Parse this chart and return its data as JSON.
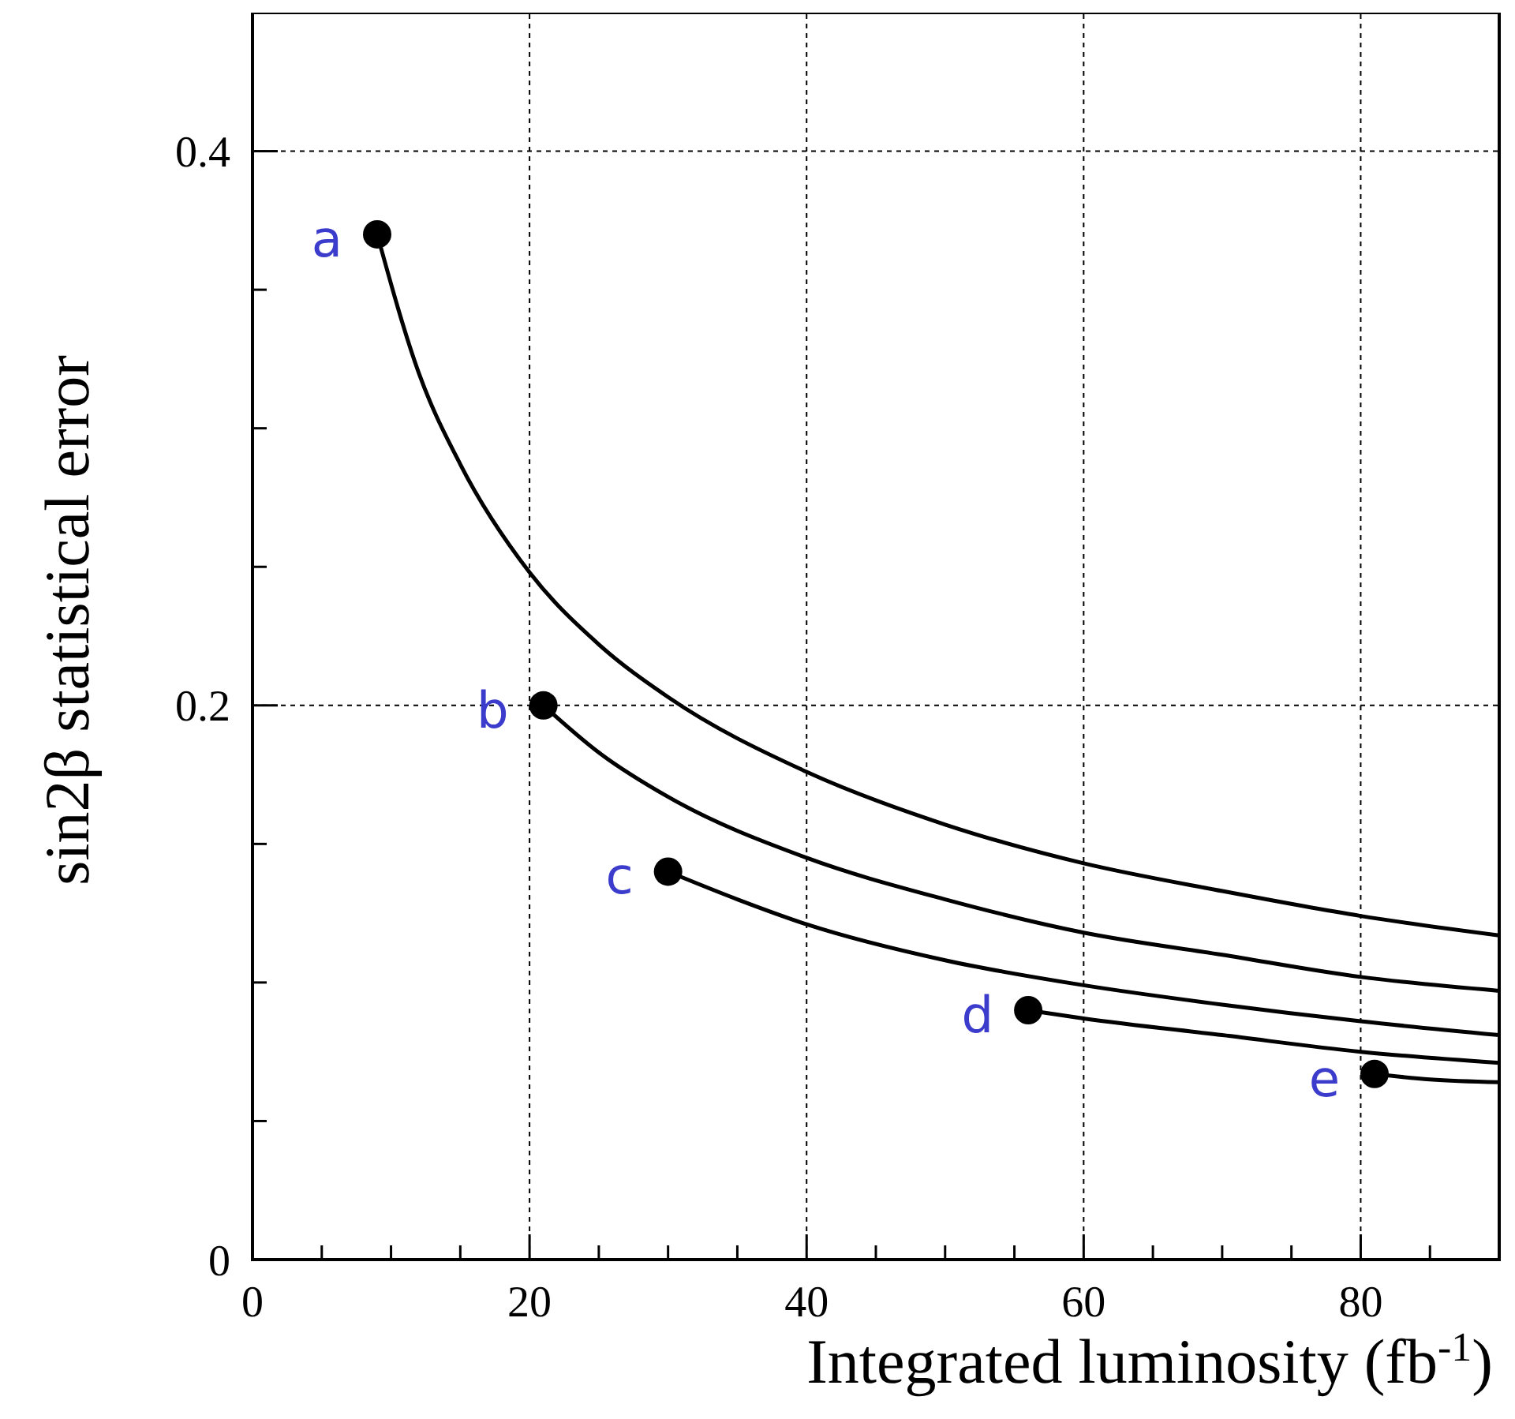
{
  "chart_data": {
    "type": "line",
    "xlabel": "Integrated luminosity (fb$^{-1}$)",
    "ylabel": "sin2β statistical error",
    "xlim": [
      0,
      90
    ],
    "ylim": [
      0,
      0.45
    ],
    "xticks": [
      0,
      {
        "value": 5,
        "label": null
      },
      {
        "value": 10,
        "label": null
      },
      {
        "value": 15,
        "label": null
      },
      20,
      {
        "value": 25,
        "label": null
      },
      {
        "value": 30,
        "label": null
      },
      {
        "value": 35,
        "label": null
      },
      40,
      {
        "value": 45,
        "label": null
      },
      {
        "value": 50,
        "label": null
      },
      {
        "value": 55,
        "label": null
      },
      60,
      {
        "value": 65,
        "label": null
      },
      {
        "value": 70,
        "label": null
      },
      {
        "value": 75,
        "label": null
      },
      80,
      {
        "value": 85,
        "label": null
      }
    ],
    "yticks": [
      0,
      {
        "value": 0.05,
        "label": null
      },
      {
        "value": 0.1,
        "label": null
      },
      {
        "value": 0.15,
        "label": null
      },
      0.2,
      {
        "value": 0.25,
        "label": null
      },
      {
        "value": 0.3,
        "label": null
      },
      {
        "value": 0.35,
        "label": null
      },
      0.4
    ],
    "grid": true,
    "line_style": "solid",
    "series": [
      {
        "color": "#000000",
        "marker": "none",
        "x": [
          9,
          12,
          15,
          20,
          25,
          30,
          40,
          50,
          60,
          70,
          80,
          90
        ],
        "values": [
          0.37,
          0.32,
          0.287,
          0.248,
          0.222,
          0.203,
          0.176,
          0.157,
          0.143,
          0.133,
          0.124,
          0.117
        ]
      },
      {
        "color": "#000000",
        "marker": "none",
        "x": [
          21,
          25,
          30,
          40,
          50,
          60,
          70,
          80,
          90
        ],
        "values": [
          0.2,
          0.183,
          0.167,
          0.145,
          0.13,
          0.118,
          0.11,
          0.102,
          0.097
        ]
      },
      {
        "color": "#000000",
        "marker": "none",
        "x": [
          30,
          35,
          40,
          50,
          60,
          70,
          80,
          90
        ],
        "values": [
          0.14,
          0.13,
          0.121,
          0.108,
          0.099,
          0.092,
          0.086,
          0.081
        ]
      },
      {
        "color": "#000000",
        "marker": "none",
        "x": [
          56,
          60,
          70,
          80,
          90
        ],
        "values": [
          0.09,
          0.087,
          0.081,
          0.075,
          0.071
        ]
      },
      {
        "color": "#000000",
        "marker": "none",
        "x": [
          81,
          85,
          90
        ],
        "values": [
          0.067,
          0.065,
          0.064
        ]
      },
      {
        "type": "scatter",
        "color": "#000000",
        "marker": "circle",
        "x": [
          9,
          21,
          30,
          56,
          81
        ],
        "values": [
          0.37,
          0.2,
          0.14,
          0.09,
          0.067
        ]
      }
    ],
    "annotations": [
      {
        "text": "a",
        "x": 9,
        "y": 0.37
      },
      {
        "text": "b",
        "x": 21,
        "y": 0.2
      },
      {
        "text": "c",
        "x": 30,
        "y": 0.14
      },
      {
        "text": "d",
        "x": 56,
        "y": 0.09
      },
      {
        "text": "e",
        "x": 81,
        "y": 0.067
      }
    ]
  }
}
